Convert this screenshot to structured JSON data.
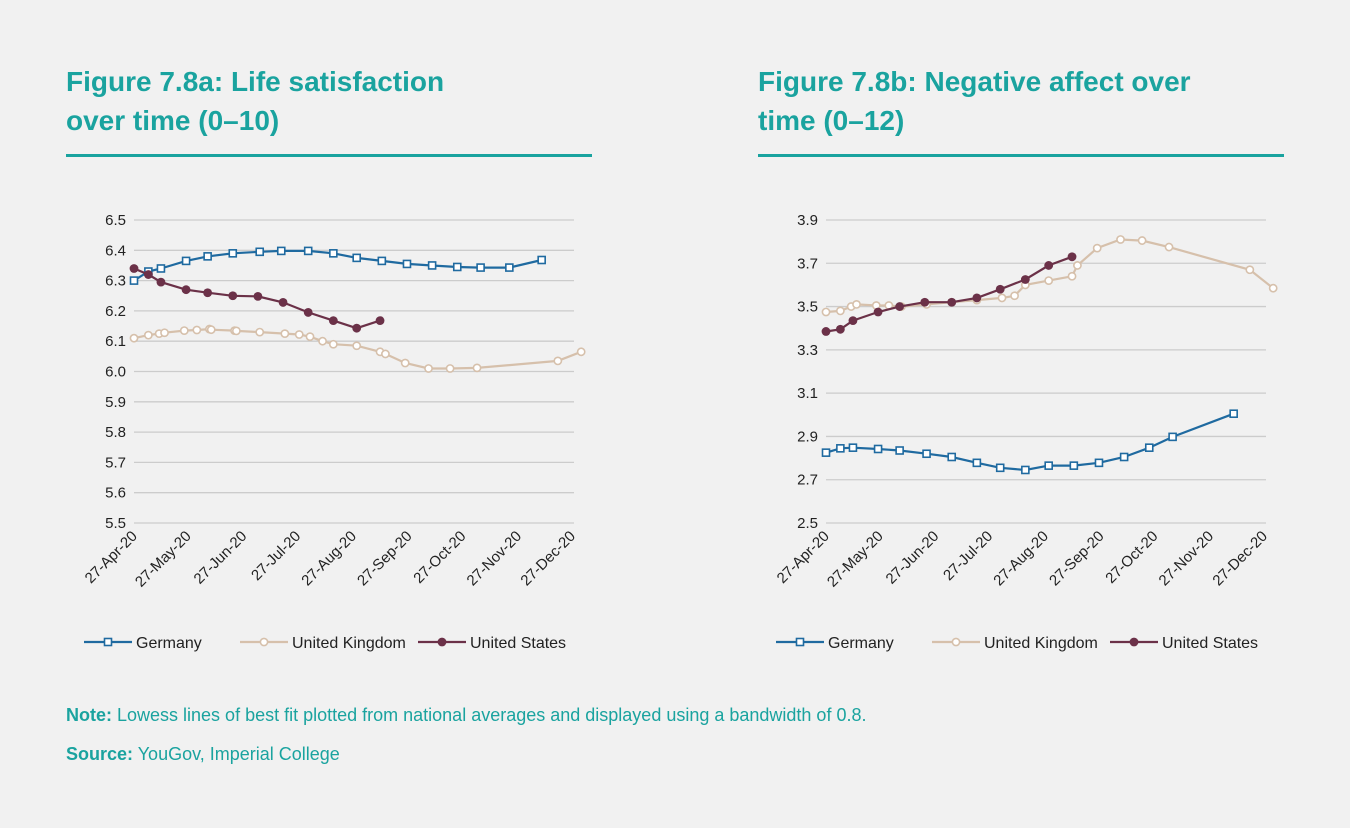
{
  "figures": {
    "a": {
      "title_line1": "Figure 7.8a: Life satisfaction",
      "title_line2": "over time (0–10)"
    },
    "b": {
      "title_line1": "Figure 7.8b: Negative affect over",
      "title_line2": "time (0–12)"
    }
  },
  "note": {
    "label": "Note:",
    "text": " Lowess lines of best fit plotted from national averages and displayed using a bandwidth of 0.8."
  },
  "source": {
    "label": "Source:",
    "text": " YouGov, Imperial College"
  },
  "colors": {
    "germany": "#1f6aa0",
    "uk": "#d6c0ab",
    "us": "#6b3148",
    "accent": "#1aa39f",
    "grid": "#cccccc"
  },
  "chart_data": [
    {
      "type": "line",
      "title": "Figure 7.8a: Life satisfaction over time (0–10)",
      "xlabel": "",
      "ylabel": "",
      "ylim": [
        5.5,
        6.5
      ],
      "yticks": [
        5.5,
        5.6,
        5.7,
        5.8,
        5.9,
        6.0,
        6.1,
        6.2,
        6.3,
        6.4,
        6.5
      ],
      "ytick_labels": [
        "5.5",
        "5.6",
        "5.7",
        "5.8",
        "5.9",
        "6.0",
        "6.1",
        "6.2",
        "6.3",
        "6.4",
        "6.5"
      ],
      "xlim": [
        0,
        245
      ],
      "xticks": [
        0,
        30,
        61,
        91,
        122,
        153,
        183,
        214,
        244
      ],
      "xtick_labels": [
        "27-Apr-20",
        "27-May-20",
        "27-Jun-20",
        "27-Jul-20",
        "27-Aug-20",
        "27-Sep-20",
        "27-Oct-20",
        "27-Nov-20",
        "27-Dec-20"
      ],
      "legend_position": "bottom",
      "series": [
        {
          "name": "Germany",
          "marker": "square",
          "color": "#1f6aa0",
          "x": [
            0,
            8,
            15,
            29,
            41,
            55,
            70,
            82,
            97,
            111,
            124,
            138,
            152,
            166,
            180,
            193,
            209,
            227
          ],
          "y": [
            6.3,
            6.33,
            6.34,
            6.365,
            6.38,
            6.39,
            6.395,
            6.398,
            6.398,
            6.39,
            6.375,
            6.365,
            6.355,
            6.35,
            6.345,
            6.343,
            6.343,
            6.368
          ]
        },
        {
          "name": "United Kingdom",
          "marker": "circle-open",
          "color": "#d6c0ab",
          "x": [
            0,
            8,
            14,
            17,
            28,
            35,
            42,
            43,
            56,
            57,
            70,
            84,
            92,
            98,
            105,
            111,
            124,
            137,
            140,
            151,
            164,
            176,
            191,
            236,
            249
          ],
          "y": [
            6.11,
            6.12,
            6.125,
            6.128,
            6.135,
            6.137,
            6.14,
            6.138,
            6.135,
            6.134,
            6.13,
            6.125,
            6.122,
            6.115,
            6.1,
            6.09,
            6.085,
            6.065,
            6.058,
            6.028,
            6.01,
            6.01,
            6.012,
            6.035,
            6.065
          ]
        },
        {
          "name": "United States",
          "marker": "circle-filled",
          "color": "#6b3148",
          "x": [
            0,
            8,
            15,
            29,
            41,
            55,
            69,
            83,
            97,
            111,
            124,
            137
          ],
          "y": [
            6.34,
            6.32,
            6.295,
            6.27,
            6.26,
            6.25,
            6.248,
            6.228,
            6.195,
            6.168,
            6.143,
            6.168
          ]
        }
      ]
    },
    {
      "type": "line",
      "title": "Figure 7.8b: Negative affect over time (0–12)",
      "xlabel": "",
      "ylabel": "",
      "ylim": [
        2.5,
        3.9
      ],
      "yticks": [
        2.5,
        2.7,
        2.9,
        3.1,
        3.3,
        3.5,
        3.7,
        3.9
      ],
      "ytick_labels": [
        "2.5",
        "2.7",
        "2.9",
        "3.1",
        "3.3",
        "3.5",
        "3.7",
        "3.9"
      ],
      "xlim": [
        0,
        245
      ],
      "xticks": [
        0,
        30,
        61,
        91,
        122,
        153,
        183,
        214,
        244
      ],
      "xtick_labels": [
        "27-Apr-20",
        "27-May-20",
        "27-Jun-20",
        "27-Jul-20",
        "27-Aug-20",
        "27-Sep-20",
        "27-Oct-20",
        "27-Nov-20",
        "27-Dec-20"
      ],
      "legend_position": "bottom",
      "series": [
        {
          "name": "Germany",
          "marker": "square",
          "color": "#1f6aa0",
          "x": [
            0,
            8,
            15,
            29,
            41,
            56,
            70,
            84,
            97,
            111,
            124,
            138,
            152,
            166,
            180,
            193,
            227
          ],
          "y": [
            2.825,
            2.845,
            2.848,
            2.842,
            2.835,
            2.82,
            2.805,
            2.778,
            2.755,
            2.745,
            2.765,
            2.765,
            2.778,
            2.805,
            2.848,
            2.898,
            3.005
          ]
        },
        {
          "name": "United Kingdom",
          "marker": "circle-open",
          "color": "#d6c0ab",
          "x": [
            0,
            8,
            14,
            17,
            28,
            35,
            42,
            56,
            70,
            84,
            98,
            105,
            111,
            124,
            137,
            140,
            151,
            164,
            176,
            191,
            236,
            249
          ],
          "y": [
            3.475,
            3.48,
            3.5,
            3.51,
            3.505,
            3.505,
            3.5,
            3.51,
            3.52,
            3.53,
            3.54,
            3.55,
            3.6,
            3.62,
            3.64,
            3.69,
            3.77,
            3.81,
            3.805,
            3.775,
            3.67,
            3.585
          ]
        },
        {
          "name": "United States",
          "marker": "circle-filled",
          "color": "#6b3148",
          "x": [
            0,
            8,
            15,
            29,
            41,
            55,
            70,
            84,
            97,
            111,
            124,
            137
          ],
          "y": [
            3.385,
            3.395,
            3.435,
            3.475,
            3.5,
            3.52,
            3.52,
            3.54,
            3.58,
            3.625,
            3.69,
            3.73
          ]
        }
      ]
    }
  ]
}
